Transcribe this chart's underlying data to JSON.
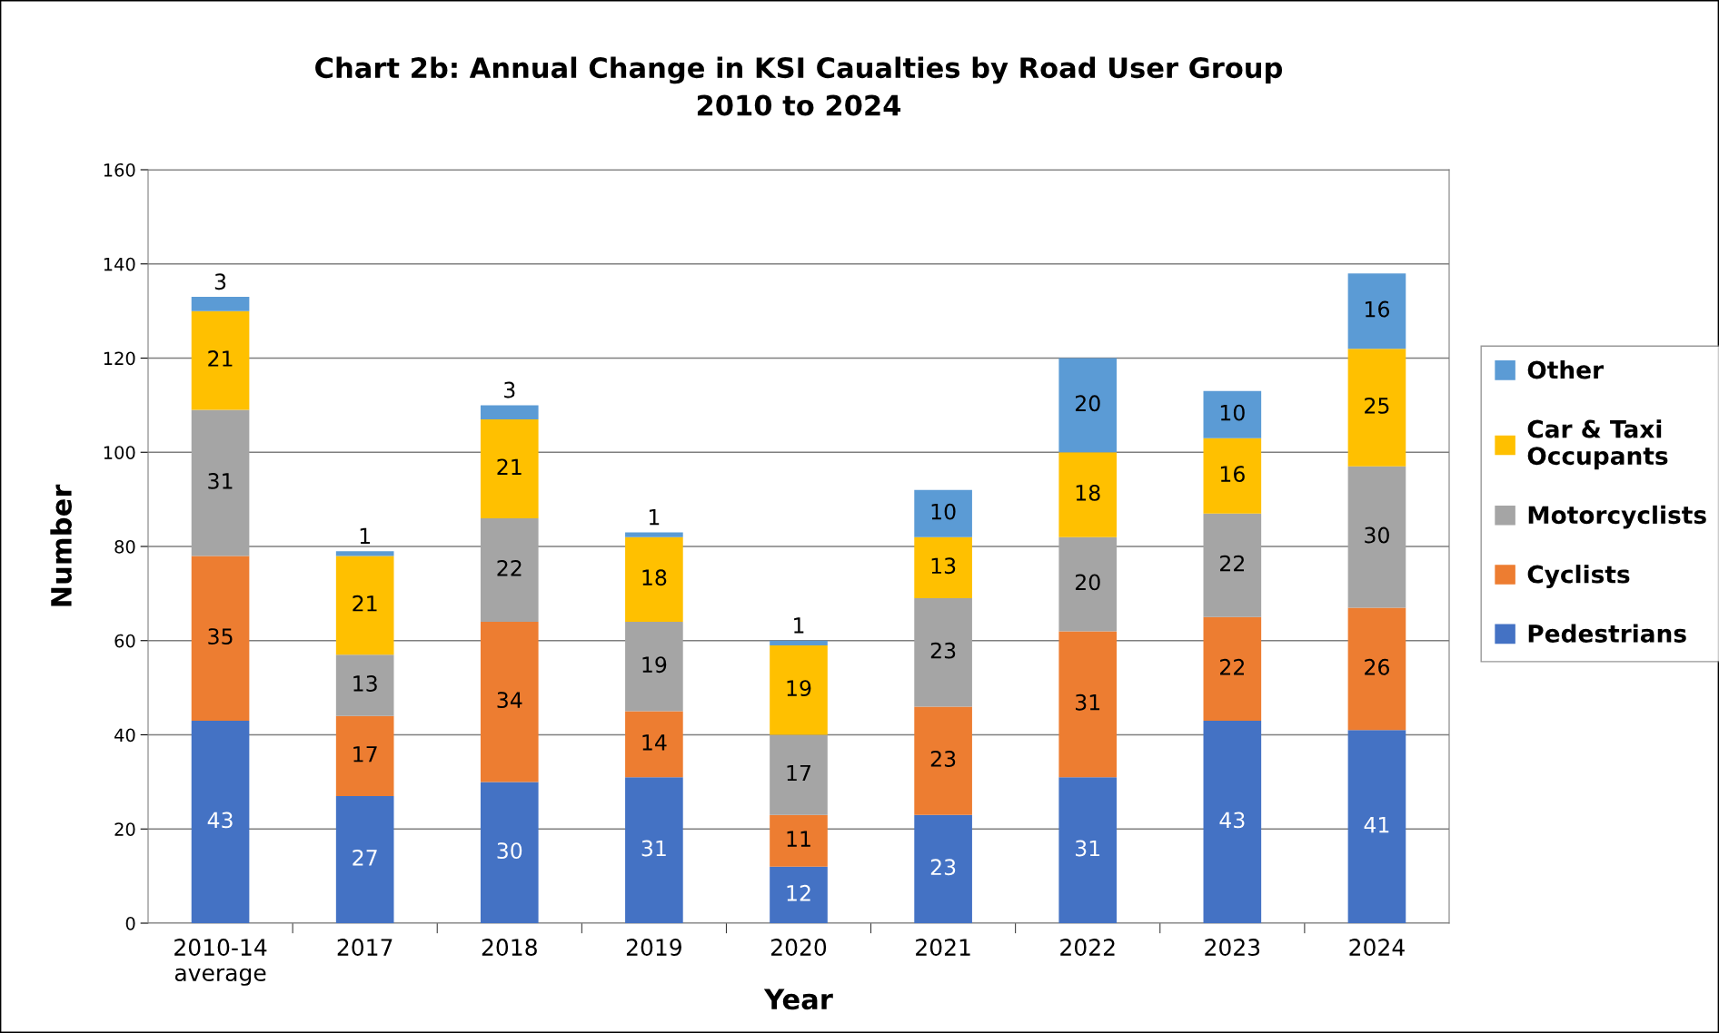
{
  "chart_data": {
    "type": "bar",
    "stacked": true,
    "title": "Chart 2b: Annual Change in KSI Caualties by Road User Group\n2010 to 2024",
    "xlabel": "Year",
    "ylabel": "Number",
    "categories": [
      "2010-14 average",
      "2017",
      "2018",
      "2019",
      "2020",
      "2021",
      "2022",
      "2023",
      "2024"
    ],
    "series": [
      {
        "name": "Pedestrians",
        "color": "#4472c4",
        "values": [
          43,
          27,
          30,
          31,
          12,
          23,
          31,
          43,
          41
        ]
      },
      {
        "name": "Cyclists",
        "color": "#ed7d31",
        "values": [
          35,
          17,
          34,
          14,
          11,
          23,
          31,
          22,
          26
        ]
      },
      {
        "name": "Motorcyclists",
        "color": "#a5a5a5",
        "values": [
          31,
          13,
          22,
          19,
          17,
          23,
          20,
          22,
          30
        ]
      },
      {
        "name": "Car & Taxi Occupants",
        "color": "#ffc000",
        "values": [
          21,
          21,
          21,
          18,
          19,
          13,
          18,
          16,
          25
        ]
      },
      {
        "name": "Other",
        "color": "#5b9bd5",
        "values": [
          3,
          1,
          3,
          1,
          1,
          10,
          20,
          10,
          16
        ]
      }
    ],
    "ylim": [
      0,
      160
    ],
    "yticks": [
      0,
      20,
      40,
      60,
      80,
      100,
      120,
      140,
      160
    ],
    "grid": "y",
    "legend": "right",
    "data_labels": true
  }
}
